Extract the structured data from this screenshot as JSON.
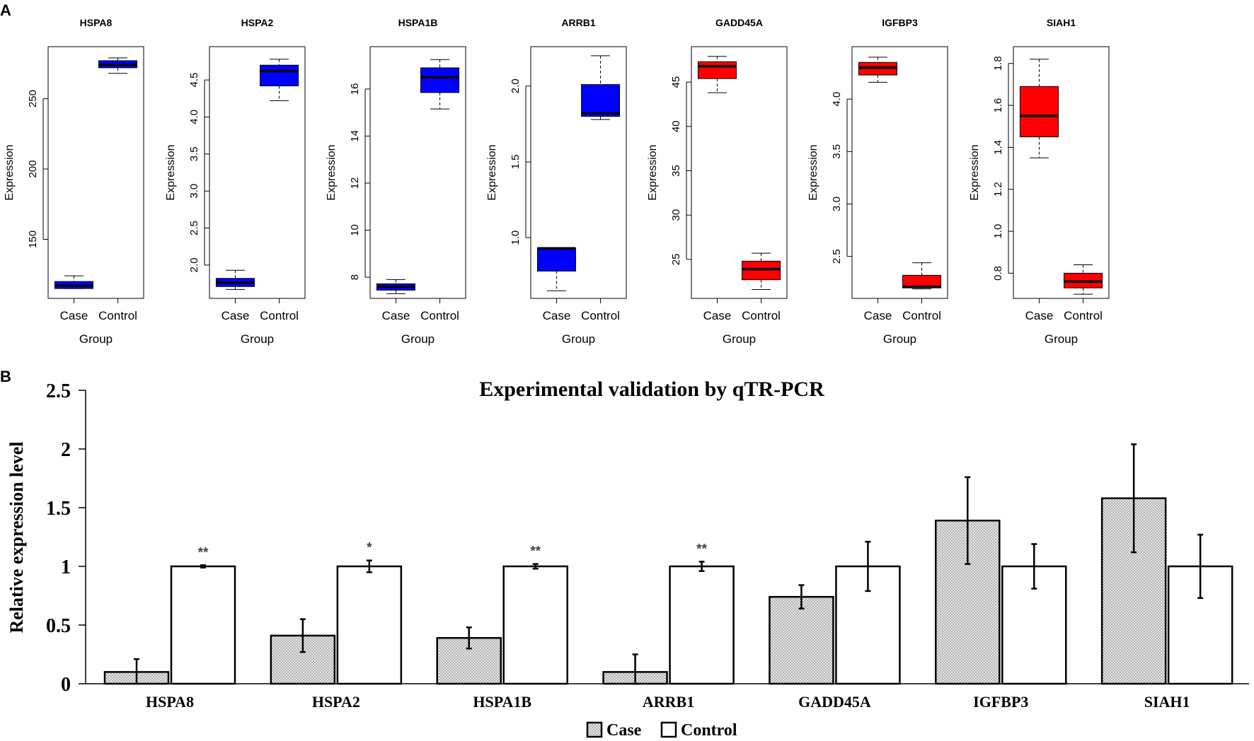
{
  "panels": {
    "a_label": "A",
    "b_label": "B"
  },
  "chart_data": [
    {
      "type": "box",
      "title": "HSPA8",
      "xlabel": "Group",
      "ylabel": "Expression",
      "categories": [
        "Case",
        "Control"
      ],
      "color": "#0000ff",
      "ylim": [
        108,
        287
      ],
      "yticks": [
        150,
        200,
        250
      ],
      "ytick_labels": [
        "150",
        "200",
        "250"
      ],
      "boxes": [
        {
          "group": "Case",
          "min": 115,
          "q1": 115,
          "median": 117,
          "q3": 120,
          "max": 124
        },
        {
          "group": "Control",
          "min": 268,
          "q1": 272,
          "median": 274,
          "q3": 277,
          "max": 279
        }
      ]
    },
    {
      "type": "box",
      "title": "HSPA2",
      "xlabel": "Group",
      "ylabel": "Expression",
      "categories": [
        "Case",
        "Control"
      ],
      "color": "#0000ff",
      "ylim": [
        1.55,
        4.95
      ],
      "yticks": [
        2.0,
        2.5,
        3.0,
        3.5,
        4.0,
        4.5
      ],
      "ytick_labels": [
        "2.0",
        "2.5",
        "3.0",
        "3.5",
        "4.0",
        "4.5"
      ],
      "boxes": [
        {
          "group": "Case",
          "min": 1.67,
          "q1": 1.71,
          "median": 1.76,
          "q3": 1.82,
          "max": 1.93
        },
        {
          "group": "Control",
          "min": 4.22,
          "q1": 4.42,
          "median": 4.62,
          "q3": 4.7,
          "max": 4.78
        }
      ]
    },
    {
      "type": "box",
      "title": "HSPA1B",
      "xlabel": "Group",
      "ylabel": "Expression",
      "categories": [
        "Case",
        "Control"
      ],
      "color": "#0000ff",
      "ylim": [
        7.1,
        17.8
      ],
      "yticks": [
        8,
        10,
        12,
        14,
        16
      ],
      "ytick_labels": [
        "8",
        "10",
        "12",
        "14",
        "16"
      ],
      "boxes": [
        {
          "group": "Case",
          "min": 7.3,
          "q1": 7.45,
          "median": 7.6,
          "q3": 7.72,
          "max": 7.9
        },
        {
          "group": "Control",
          "min": 15.15,
          "q1": 15.85,
          "median": 16.5,
          "q3": 16.9,
          "max": 17.25
        }
      ]
    },
    {
      "type": "box",
      "title": "ARRB1",
      "xlabel": "Group",
      "ylabel": "Expression",
      "categories": [
        "Case",
        "Control"
      ],
      "color": "#0000ff",
      "ylim": [
        0.6,
        2.26
      ],
      "yticks": [
        1.0,
        1.5,
        2.0
      ],
      "ytick_labels": [
        "1.0",
        "1.5",
        "2.0"
      ],
      "boxes": [
        {
          "group": "Case",
          "min": 0.65,
          "q1": 0.78,
          "median": 0.93,
          "q3": 0.93,
          "max": 0.93
        },
        {
          "group": "Control",
          "min": 1.78,
          "q1": 1.8,
          "median": 1.82,
          "q3": 2.01,
          "max": 2.2
        }
      ]
    },
    {
      "type": "box",
      "title": "GADD45A",
      "xlabel": "Group",
      "ylabel": "Expression",
      "categories": [
        "Case",
        "Control"
      ],
      "color": "#ff0000",
      "ylim": [
        20.6,
        49
      ],
      "yticks": [
        25,
        30,
        35,
        40,
        45
      ],
      "ytick_labels": [
        "25",
        "30",
        "35",
        "40",
        "45"
      ],
      "boxes": [
        {
          "group": "Case",
          "min": 43.8,
          "q1": 45.4,
          "median": 46.8,
          "q3": 47.3,
          "max": 47.9
        },
        {
          "group": "Control",
          "min": 21.6,
          "q1": 22.7,
          "median": 23.9,
          "q3": 24.8,
          "max": 25.7
        }
      ]
    },
    {
      "type": "box",
      "title": "IGFBP3",
      "xlabel": "Group",
      "ylabel": "Expression",
      "categories": [
        "Case",
        "Control"
      ],
      "color": "#ff0000",
      "ylim": [
        2.1,
        4.5
      ],
      "yticks": [
        2.5,
        3.0,
        3.5,
        4.0
      ],
      "ytick_labels": [
        "2.5",
        "3.0",
        "3.5",
        "4.0"
      ],
      "boxes": [
        {
          "group": "Case",
          "min": 4.16,
          "q1": 4.23,
          "median": 4.3,
          "q3": 4.35,
          "max": 4.4
        },
        {
          "group": "Control",
          "min": 2.19,
          "q1": 2.2,
          "median": 2.21,
          "q3": 2.32,
          "max": 2.44
        }
      ]
    },
    {
      "type": "box",
      "title": "SIAH1",
      "xlabel": "Group",
      "ylabel": "Expression",
      "categories": [
        "Case",
        "Control"
      ],
      "color": "#ff0000",
      "ylim": [
        0.68,
        1.88
      ],
      "yticks": [
        0.8,
        1.0,
        1.2,
        1.4,
        1.6,
        1.8
      ],
      "ytick_labels": [
        "0.8",
        "1.0",
        "1.2",
        "1.4",
        "1.6",
        "1.8"
      ],
      "boxes": [
        {
          "group": "Case",
          "min": 1.35,
          "q1": 1.45,
          "median": 1.55,
          "q3": 1.69,
          "max": 1.82
        },
        {
          "group": "Control",
          "min": 0.7,
          "q1": 0.73,
          "median": 0.76,
          "q3": 0.8,
          "max": 0.84
        }
      ]
    },
    {
      "type": "bar",
      "title": "Experimental validation by qTR-PCR",
      "xlabel": "",
      "ylabel": "Relative expression level",
      "categories": [
        "HSPA8",
        "HSPA2",
        "HSPA1B",
        "ARRB1",
        "GADD45A",
        "IGFBP3",
        "SIAH1"
      ],
      "ylim": [
        0,
        2.5
      ],
      "yticks": [
        0,
        0.5,
        1,
        1.5,
        2,
        2.5
      ],
      "ytick_labels": [
        "0",
        "0.5",
        "1",
        "1.5",
        "2",
        "2.5"
      ],
      "series": [
        {
          "name": "Case",
          "values": [
            0.1,
            0.41,
            0.39,
            0.1,
            0.74,
            1.39,
            1.58
          ],
          "errors": [
            0.11,
            0.14,
            0.09,
            0.15,
            0.1,
            0.37,
            0.46
          ]
        },
        {
          "name": "Control",
          "values": [
            1,
            1,
            1,
            1,
            1,
            1,
            1
          ],
          "errors": [
            0.01,
            0.05,
            0.02,
            0.04,
            0.21,
            0.19,
            0.27
          ]
        }
      ],
      "significance": [
        "**",
        "*",
        "**",
        "**",
        "",
        "",
        ""
      ],
      "legend": [
        "Case",
        "Control"
      ],
      "legend_position": "bottom-center"
    }
  ]
}
